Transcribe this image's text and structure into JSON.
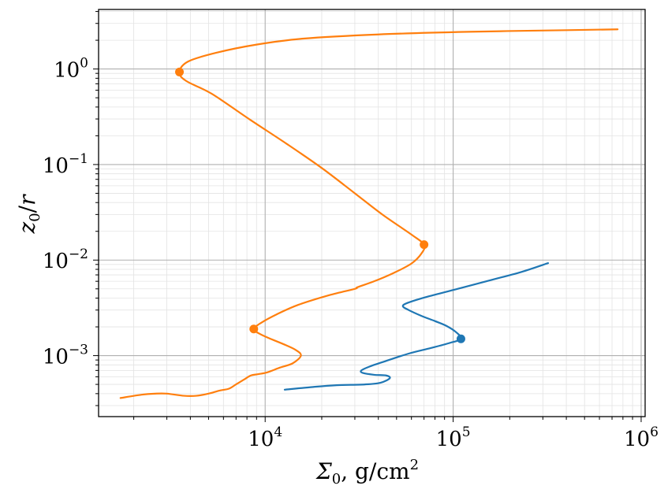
{
  "chart_data": {
    "type": "line",
    "xscale": "log",
    "yscale": "log",
    "xlim": [
      1300,
      1050000
    ],
    "ylim": [
      0.00023,
      4.2
    ],
    "grid": true,
    "xlabel": "Σ₀, g/cm²",
    "ylabel": "z₀/r",
    "x_ticks": [
      {
        "base": "10",
        "exp": "4"
      },
      {
        "base": "10",
        "exp": "5"
      },
      {
        "base": "10",
        "exp": "6"
      }
    ],
    "y_ticks": [
      {
        "base": "10",
        "exp": "0"
      },
      {
        "base": "10",
        "exp": "−1"
      },
      {
        "base": "10",
        "exp": "−2"
      },
      {
        "base": "10",
        "exp": "−3"
      }
    ],
    "series": [
      {
        "color": "#ff7f0e",
        "points": [
          [
            1700,
            0.00036
          ],
          [
            2200,
            0.00039
          ],
          [
            2600,
            0.0004
          ],
          [
            3000,
            0.0004
          ],
          [
            3700,
            0.00038
          ],
          [
            4300,
            0.00038
          ],
          [
            5000,
            0.0004
          ],
          [
            5700,
            0.00043
          ],
          [
            6400,
            0.00045
          ],
          [
            7000,
            0.0005
          ],
          [
            7700,
            0.00056
          ],
          [
            8400,
            0.00062
          ],
          [
            9200,
            0.00064
          ],
          [
            10300,
            0.00067
          ],
          [
            12000,
            0.00075
          ],
          [
            14000,
            0.00083
          ],
          [
            15500,
            0.001
          ],
          [
            14500,
            0.00115
          ],
          [
            12500,
            0.00132
          ],
          [
            10500,
            0.00152
          ],
          [
            9300,
            0.0017
          ],
          [
            8700,
            0.0019
          ],
          [
            9500,
            0.0022
          ],
          [
            11500,
            0.0027
          ],
          [
            15000,
            0.0034
          ],
          [
            22000,
            0.0043
          ],
          [
            30000,
            0.005
          ],
          [
            31000,
            0.0052
          ],
          [
            38000,
            0.006
          ],
          [
            48000,
            0.0073
          ],
          [
            60000,
            0.0092
          ],
          [
            68000,
            0.0118
          ],
          [
            70000,
            0.0145
          ],
          [
            60000,
            0.0185
          ],
          [
            42000,
            0.03
          ],
          [
            30000,
            0.05
          ],
          [
            20000,
            0.092
          ],
          [
            13000,
            0.165
          ],
          [
            8200,
            0.3
          ],
          [
            5200,
            0.55
          ],
          [
            3800,
            0.75
          ],
          [
            3500,
            0.93
          ],
          [
            3900,
            1.2
          ],
          [
            5500,
            1.48
          ],
          [
            9000,
            1.8
          ],
          [
            16000,
            2.08
          ],
          [
            40000,
            2.3
          ],
          [
            120000,
            2.45
          ],
          [
            400000,
            2.55
          ],
          [
            750000,
            2.6
          ]
        ],
        "markers": [
          [
            3500,
            0.93
          ],
          [
            70000,
            0.0145
          ],
          [
            8700,
            0.0019
          ]
        ]
      },
      {
        "color": "#1f77b4",
        "points": [
          [
            12700,
            0.00044
          ],
          [
            18000,
            0.00047
          ],
          [
            24000,
            0.00049
          ],
          [
            34000,
            0.0005
          ],
          [
            41000,
            0.00052
          ],
          [
            46000,
            0.00058
          ],
          [
            44000,
            0.00062
          ],
          [
            38000,
            0.00063
          ],
          [
            33000,
            0.00066
          ],
          [
            32500,
            0.0007
          ],
          [
            36000,
            0.00077
          ],
          [
            44000,
            0.00088
          ],
          [
            58000,
            0.00105
          ],
          [
            76000,
            0.0012
          ],
          [
            95000,
            0.00135
          ],
          [
            110000,
            0.0015
          ],
          [
            104000,
            0.00175
          ],
          [
            92000,
            0.00205
          ],
          [
            80000,
            0.0023
          ],
          [
            68000,
            0.0026
          ],
          [
            58000,
            0.003
          ],
          [
            54000,
            0.0033
          ],
          [
            58000,
            0.0036
          ],
          [
            75000,
            0.0042
          ],
          [
            110000,
            0.0051
          ],
          [
            160000,
            0.0062
          ],
          [
            230000,
            0.0075
          ],
          [
            320000,
            0.0093
          ]
        ],
        "markers": [
          [
            110000,
            0.0015
          ]
        ]
      }
    ]
  }
}
